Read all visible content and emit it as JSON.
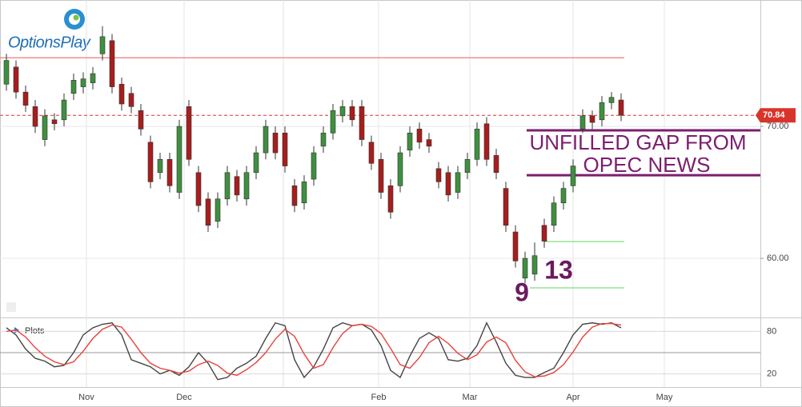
{
  "chart_data": {
    "type": "candlestick",
    "logo": "OptionsPlay",
    "xlim": [
      -0.667,
      78.5
    ],
    "xticks": [
      {
        "value": 8.33,
        "label": "Nov"
      },
      {
        "value": 18.5,
        "label": "Dec"
      },
      {
        "value": 28.83,
        "label": null
      },
      {
        "value": 38.75,
        "label": "Feb"
      },
      {
        "value": 48.25,
        "label": "Mar"
      },
      {
        "value": 59,
        "label": "Apr"
      },
      {
        "value": 68.5,
        "label": "May"
      }
    ],
    "ylim": [
      55.64,
      79.58
    ],
    "yticks": [
      {
        "value": 60,
        "label": "60.00"
      },
      {
        "value": 70,
        "label": "70.00"
      }
    ],
    "up_color": "#3f8f3f",
    "down_color": "#a81d1d",
    "open": [
      73.2,
      74.5,
      72.6,
      71.5,
      69.0,
      70.5,
      70.5,
      72.5,
      73.0,
      73.3,
      75.5,
      76.5,
      73.2,
      72.5,
      71.2,
      68.8,
      66.5,
      67.5,
      65.0,
      71.5,
      66.5,
      64.5,
      62.8,
      64.5,
      66.2,
      64.5,
      66.5,
      68.0,
      69.5,
      69.5,
      65.5,
      64.2,
      66.0,
      68.5,
      69.5,
      70.8,
      71.5,
      71.5,
      68.8,
      67.5,
      65.5,
      65.5,
      68.2,
      69.8,
      69.0,
      66.8,
      66.5,
      65.0,
      66.5,
      67.5,
      70.2,
      67.8,
      65.3,
      62.0,
      58.5,
      58.8,
      62.5,
      62.5,
      64.2,
      65.5,
      69.8,
      70.8,
      70.5,
      71.8,
      72.0
    ],
    "high": [
      75.5,
      75.0,
      73.1,
      72.0,
      71.3,
      71.0,
      72.5,
      74.0,
      74.1,
      74.5,
      77.6,
      77.0,
      73.7,
      73.0,
      71.7,
      69.3,
      68.0,
      68.0,
      70.5,
      72.0,
      67.0,
      65.0,
      65.0,
      67.0,
      66.7,
      67.0,
      68.5,
      70.5,
      70.0,
      70.0,
      66.0,
      66.3,
      68.5,
      70.0,
      71.7,
      72.0,
      72.0,
      72.0,
      69.3,
      68.0,
      66.0,
      68.5,
      70.0,
      70.3,
      69.5,
      67.3,
      67.0,
      67.0,
      68.0,
      70.3,
      70.7,
      68.3,
      65.8,
      62.5,
      60.5,
      61.2,
      63.0,
      64.7,
      65.8,
      67.5,
      71.3,
      71.2,
      72.3,
      72.6,
      72.5
    ],
    "low": [
      72.7,
      72.1,
      71.1,
      69.5,
      68.5,
      69.7,
      70.0,
      72.0,
      72.5,
      72.8,
      75.0,
      72.5,
      71.2,
      71.0,
      69.3,
      65.3,
      66.0,
      65.0,
      64.5,
      67.0,
      63.5,
      62.0,
      62.3,
      64.0,
      64.3,
      64.0,
      66.0,
      67.5,
      67.5,
      66.5,
      63.5,
      63.7,
      65.5,
      68.0,
      69.0,
      70.3,
      70.0,
      68.5,
      66.7,
      64.5,
      63.0,
      65.0,
      67.7,
      68.3,
      68.0,
      65.3,
      64.3,
      64.5,
      66.0,
      67.0,
      67.0,
      66.0,
      62.0,
      59.3,
      58.1,
      58.3,
      60.8,
      62.0,
      63.7,
      65.0,
      69.5,
      69.8,
      70.0,
      71.3,
      70.4
    ],
    "close": [
      75.0,
      72.6,
      71.6,
      70.0,
      70.8,
      70.2,
      72.0,
      73.5,
      73.6,
      74.0,
      76.8,
      73.0,
      71.7,
      71.5,
      69.8,
      65.8,
      67.5,
      65.5,
      70.0,
      67.5,
      64.0,
      62.5,
      64.5,
      66.5,
      64.8,
      66.5,
      68.0,
      70.0,
      68.0,
      67.0,
      64.0,
      65.8,
      68.0,
      69.5,
      71.2,
      71.5,
      70.5,
      69.0,
      67.2,
      65.0,
      63.5,
      68.0,
      69.5,
      68.8,
      68.5,
      65.8,
      64.8,
      66.5,
      67.5,
      69.8,
      67.5,
      66.5,
      62.5,
      59.8,
      60.0,
      60.2,
      61.3,
      64.2,
      65.3,
      67.0,
      70.8,
      70.3,
      71.8,
      72.2,
      70.84
    ],
    "last_price": 70.84,
    "last_price_color": "#d9342b",
    "levels": [
      {
        "value": 75.2,
        "color": "#f07a7a"
      },
      {
        "value": 69.7,
        "color": "#7b1f6e"
      },
      {
        "value": 66.3,
        "color": "#7b1f6e"
      },
      {
        "value": 61.27,
        "color": "#7ee07e"
      },
      {
        "value": 57.76,
        "color": "#7ee07e"
      }
    ],
    "annotations": [
      {
        "text": "UNFILLED GAP FROM",
        "color": "#7b1f6e"
      },
      {
        "text": "OPEC NEWS",
        "color": "#7b1f6e"
      },
      {
        "text": "9",
        "color": "#6b1a5e"
      },
      {
        "text": "13",
        "color": "#6b1a5e"
      }
    ],
    "oscillator": {
      "title": "Plots",
      "ylim": [
        1.5,
        98.5
      ],
      "yticks": [
        20,
        80
      ],
      "midline": 50,
      "series": [
        {
          "color": "#444444",
          "values": [
            85,
            75,
            55,
            42,
            38,
            30,
            32,
            50,
            75,
            85,
            90,
            92,
            75,
            40,
            35,
            30,
            20,
            25,
            18,
            30,
            50,
            35,
            12,
            15,
            28,
            35,
            45,
            70,
            92,
            88,
            40,
            15,
            30,
            55,
            85,
            92,
            88,
            90,
            82,
            60,
            25,
            15,
            45,
            70,
            78,
            70,
            40,
            38,
            42,
            60,
            92,
            65,
            35,
            18,
            15,
            15,
            22,
            28,
            50,
            75,
            90,
            92,
            90,
            92,
            85
          ]
        },
        {
          "color": "#e8413a",
          "values": [
            80,
            82,
            72,
            57,
            45,
            37,
            33,
            37,
            52,
            70,
            83,
            89,
            86,
            69,
            50,
            35,
            28,
            25,
            21,
            24,
            33,
            38,
            32,
            21,
            18,
            26,
            36,
            50,
            69,
            83,
            73,
            48,
            28,
            33,
            57,
            77,
            88,
            90,
            87,
            77,
            56,
            33,
            28,
            43,
            64,
            73,
            63,
            49,
            40,
            47,
            65,
            72,
            64,
            39,
            23,
            16,
            17,
            22,
            33,
            51,
            72,
            86,
            91,
            91,
            89
          ]
        }
      ]
    }
  }
}
